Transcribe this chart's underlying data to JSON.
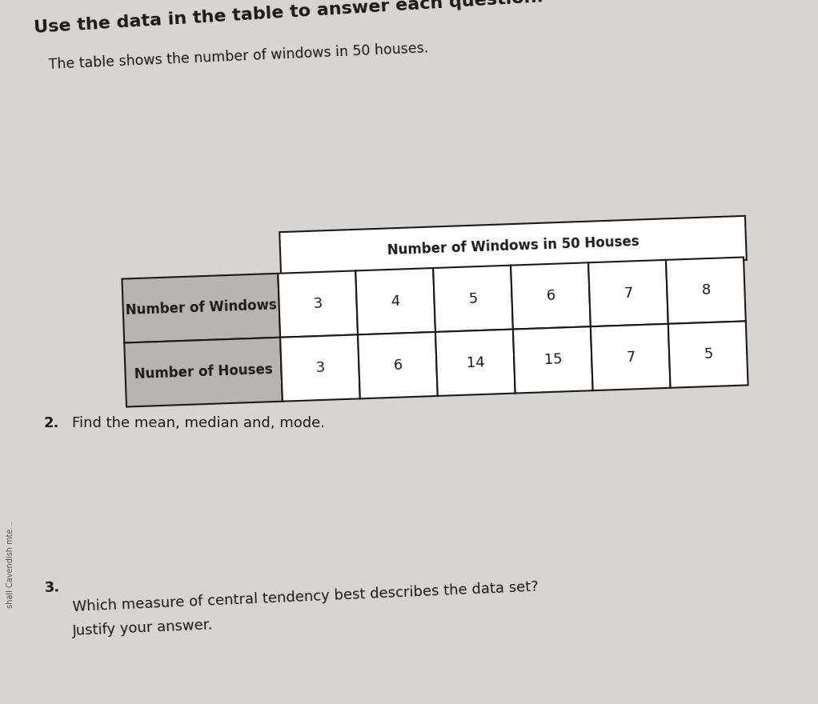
{
  "title_bold": "Use the data in the table to answer each question.",
  "subtitle": "The table shows the number of windows in 50 houses.",
  "table_title": "Number of Windows in 50 Houses",
  "row1_label": "Number of Windows",
  "row2_label": "Number of Houses",
  "windows": [
    3,
    4,
    5,
    6,
    7,
    8
  ],
  "houses": [
    3,
    6,
    14,
    15,
    7,
    5
  ],
  "q2_num": "2.",
  "q2_text": "Find the mean, median and, mode.",
  "q3_num": "3.",
  "q3_line1": "Which measure of central tendency best describes the data set?",
  "q3_line2": "Justify your answer.",
  "bg_color": "#d8d4cf",
  "cell_fill": "#ffffff",
  "label_fill": "#b8b4af",
  "title_cell_fill": "#ffffff",
  "border_color": "#1a1a1a",
  "text_color": "#1a1a1a",
  "sidebar_text": "shall Cavendish mte...",
  "title_rotation": 3.5,
  "subtitle_rotation": 2.5,
  "table_rotation": 2.0
}
